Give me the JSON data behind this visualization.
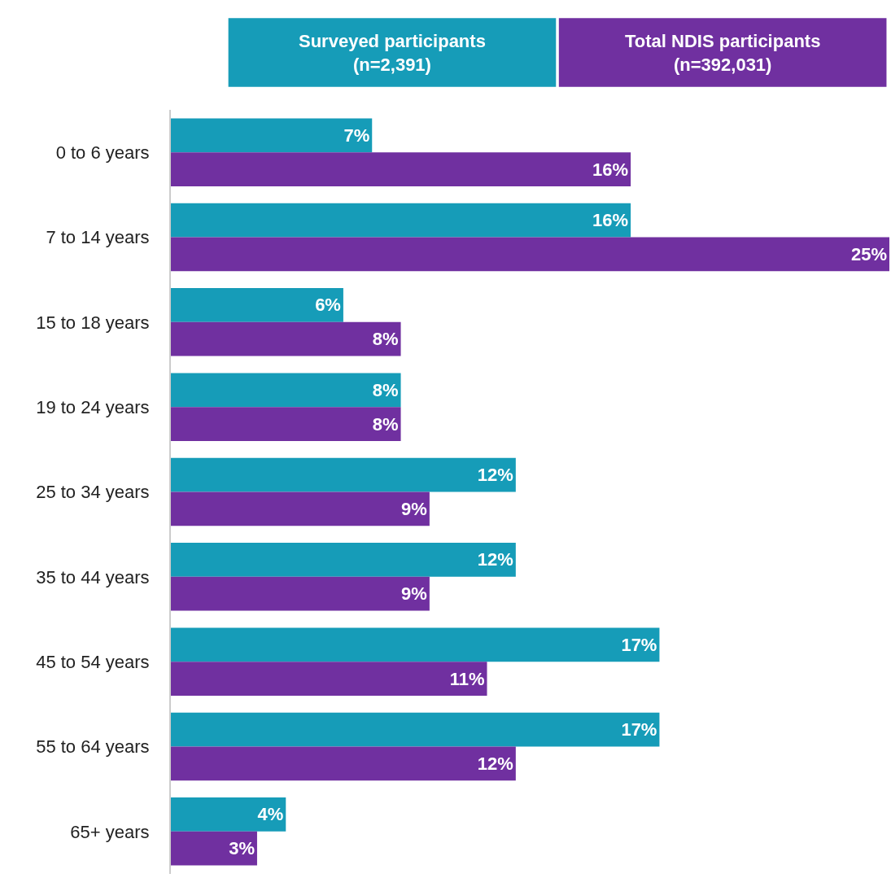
{
  "chart_data": {
    "type": "bar",
    "orientation": "horizontal",
    "legend": "top",
    "categories": [
      "0 to 6 years",
      "7 to 14 years",
      "15 to 18 years",
      "19 to 24 years",
      "25 to 34 years",
      "35 to 44 years",
      "45 to 54 years",
      "55 to 64 years",
      "65+ years"
    ],
    "series": [
      {
        "name": "Surveyed participants (n=2,391)",
        "color": "#169cb8",
        "values": [
          7,
          16,
          6,
          8,
          12,
          12,
          17,
          17,
          4
        ],
        "value_labels": [
          "7%",
          "16%",
          "6%",
          "8%",
          "12%",
          "12%",
          "17%",
          "17%",
          "4%"
        ]
      },
      {
        "name": "Total NDIS participants (n=392,031)",
        "color": "#7030a0",
        "values": [
          16,
          25,
          8,
          8,
          9,
          9,
          11,
          12,
          3
        ],
        "value_labels": [
          "16%",
          "25%",
          "8%",
          "8%",
          "9%",
          "9%",
          "11%",
          "12%",
          "3%"
        ]
      }
    ]
  }
}
